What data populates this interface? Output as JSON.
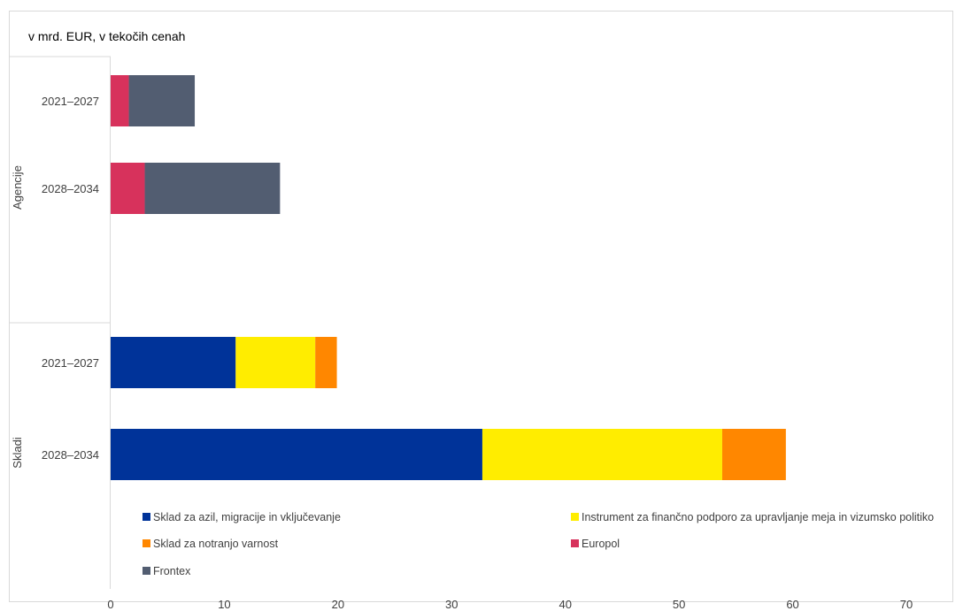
{
  "chart_data": {
    "type": "bar",
    "orientation": "horizontal",
    "stacked": true,
    "unit_label": "v mrd. EUR, v tekočih cenah",
    "groups": [
      {
        "label": "Agencije",
        "rows": [
          {
            "label": "2021–2027",
            "values": {
              "sklad_azil": 0,
              "instrument_meje": 0,
              "sklad_varnost": 0,
              "europol": 1.6,
              "frontex": 5.8
            }
          },
          {
            "label": "2028–2034",
            "values": {
              "sklad_azil": 0,
              "instrument_meje": 0,
              "sklad_varnost": 0,
              "europol": 3.0,
              "frontex": 11.9
            }
          }
        ]
      },
      {
        "label": "Skladi",
        "rows": [
          {
            "label": "2021–2027",
            "values": {
              "sklad_azil": 11.0,
              "instrument_meje": 7.0,
              "sklad_varnost": 1.9,
              "europol": 0,
              "frontex": 0
            }
          },
          {
            "label": "2028–2034",
            "values": {
              "sklad_azil": 32.7,
              "instrument_meje": 21.1,
              "sklad_varnost": 5.6,
              "europol": 0,
              "frontex": 0
            }
          }
        ]
      }
    ],
    "series": [
      {
        "key": "sklad_azil",
        "name": "Sklad za azil, migracije in vključevanje",
        "color": "#003399"
      },
      {
        "key": "instrument_meje",
        "name": "Instrument za finančno podporo za upravljanje meja in vizumsko politiko",
        "color": "#FFED00"
      },
      {
        "key": "sklad_varnost",
        "name": "Sklad za notranjo varnost",
        "color": "#FF8700"
      },
      {
        "key": "europol",
        "name": "Europol",
        "color": "#D7325C"
      },
      {
        "key": "frontex",
        "name": "Frontex",
        "color": "#525D71"
      }
    ],
    "xlim": [
      0,
      70
    ],
    "xticks": [
      0,
      10,
      20,
      30,
      40,
      50,
      60,
      70
    ],
    "grid": false,
    "legend_position": "bottom"
  }
}
